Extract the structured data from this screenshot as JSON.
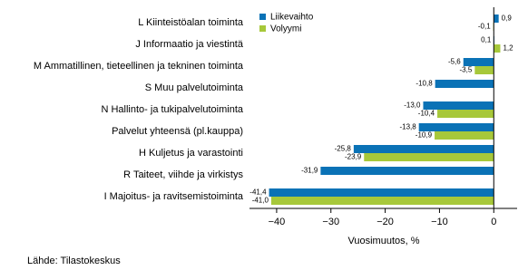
{
  "chart_data": {
    "type": "bar",
    "orientation": "horizontal",
    "categories": [
      "L Kiinteistöalan toiminta",
      "J Informaatio ja viestintä",
      "M Ammatillinen, tieteellinen ja tekninen toiminta",
      "S Muu palvelutoiminta",
      "N Hallinto- ja tukipalvelutoiminta",
      "Palvelut yhteensä (pl.kauppa)",
      "H Kuljetus ja varastointi",
      "R Taiteet, viihde ja virkistys",
      "I Majoitus- ja ravitsemistoiminta"
    ],
    "series": [
      {
        "name": "Liikevaihto",
        "color": "#0a72b6",
        "values": [
          0.9,
          0.1,
          -5.6,
          -10.8,
          -13.0,
          -13.8,
          -25.8,
          -31.9,
          -41.4
        ],
        "value_labels": [
          "0,9",
          "0,1",
          "-5,6",
          "-10,8",
          "-13,0",
          "-13,8",
          "-25,8",
          "-31,9",
          "-41,4"
        ]
      },
      {
        "name": "Volyymi",
        "color": "#a7c83a",
        "values": [
          -0.1,
          1.2,
          -3.5,
          null,
          -10.4,
          -10.9,
          -23.9,
          null,
          -41.0
        ],
        "value_labels": [
          "-0,1",
          "1,2",
          "-3,5",
          null,
          "-10,4",
          "-10,9",
          "-23,9",
          null,
          "-41,0"
        ]
      }
    ],
    "xlabel": "Vuosimuutos, %",
    "xlim": [
      -45,
      4.3
    ],
    "xticks": [
      {
        "value": -40,
        "label": "−40"
      },
      {
        "value": -30,
        "label": "−30"
      },
      {
        "value": -20,
        "label": "−20"
      },
      {
        "value": -10,
        "label": "−10"
      },
      0
    ],
    "source": "Lähde: Tilastokeskus"
  }
}
